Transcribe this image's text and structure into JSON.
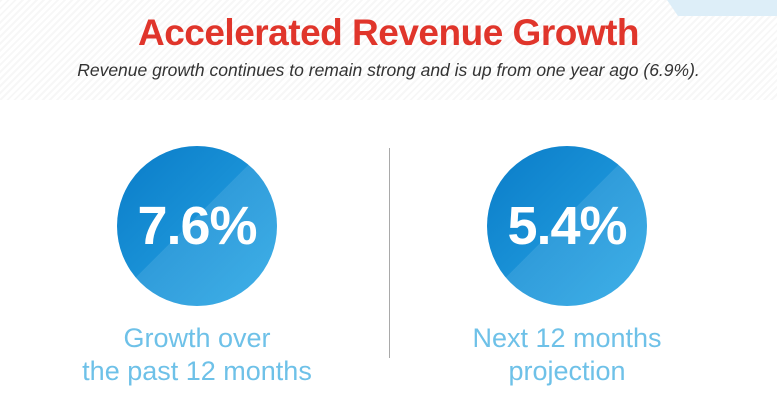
{
  "title": "Accelerated Revenue Growth",
  "subtitle": "Revenue growth continues to remain strong and is up from one year ago (6.9%).",
  "colors": {
    "title": "#e0352b",
    "caption": "#6ec1e8",
    "circle_dark": "#0a7cc8",
    "circle_light": "#2aa8e6"
  },
  "stats": [
    {
      "value": "7.6%",
      "caption_line1": "Growth over",
      "caption_line2": "the past 12 months"
    },
    {
      "value": "5.4%",
      "caption_line1": "Next 12 months",
      "caption_line2": "projection"
    }
  ]
}
